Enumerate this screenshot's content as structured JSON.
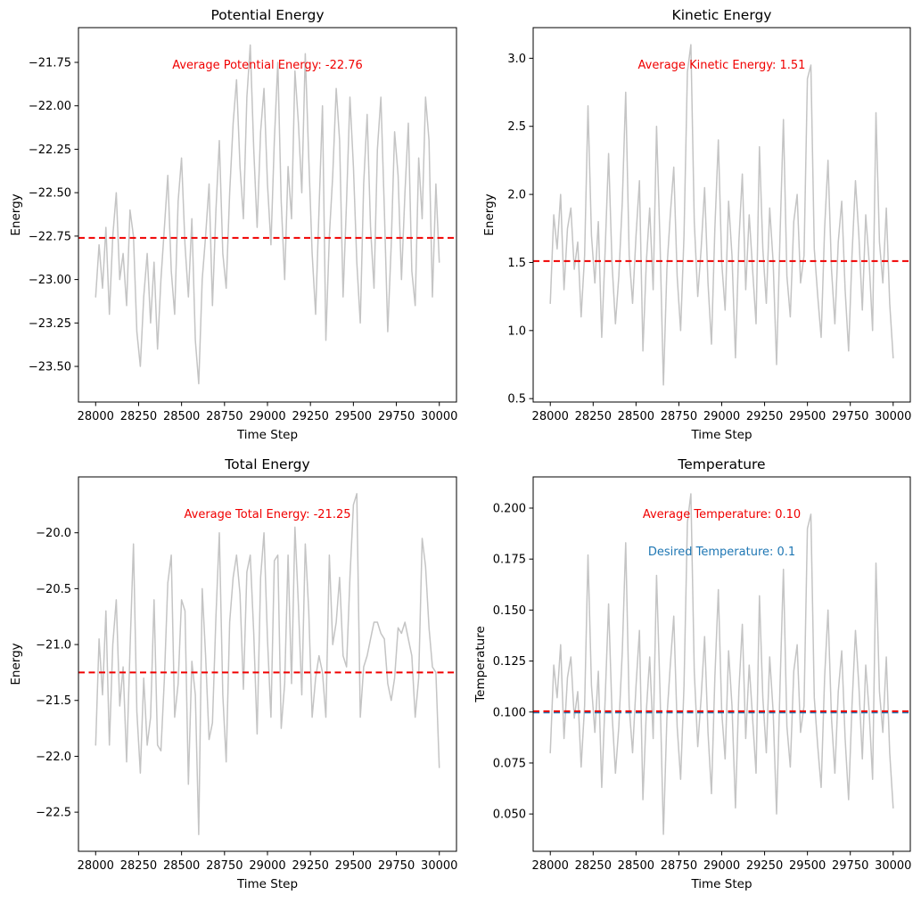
{
  "figure": {
    "background": "#ffffff",
    "colors": {
      "series": "#c4c4c4",
      "average_line": "#f00000",
      "desired_line": "#1f77b4",
      "axis": "#000000",
      "text": "#000000"
    }
  },
  "chart_data": [
    {
      "type": "line",
      "title": "Potential Energy",
      "xlabel": "Time Step",
      "ylabel": "Energy",
      "x_start": 28000,
      "x_step": 20,
      "xlim": [
        27900,
        30100
      ],
      "ylim": [
        -23.705,
        -21.55
      ],
      "xticks": [
        28000,
        28250,
        28500,
        28750,
        29000,
        29250,
        29500,
        29750,
        30000
      ],
      "xtick_labels": [
        "28000",
        "28250",
        "28500",
        "28750",
        "29000",
        "29250",
        "29500",
        "29750",
        "30000"
      ],
      "yticks": [
        -21.75,
        -22.0,
        -22.25,
        -22.5,
        -22.75,
        -23.0,
        -23.25,
        -23.5
      ],
      "ytick_labels": [
        "−21.75",
        "−22.00",
        "−22.25",
        "−22.50",
        "−22.75",
        "−23.00",
        "−23.25",
        "−23.50"
      ],
      "grid": false,
      "series_color": "#c4c4c4",
      "avg_line": {
        "value": -22.76,
        "color": "#f00000",
        "label": "Average Potential Energy: -22.76"
      },
      "values": [
        -23.1,
        -22.8,
        -23.05,
        -22.7,
        -23.2,
        -22.75,
        -22.5,
        -23.0,
        -22.85,
        -23.15,
        -22.6,
        -22.75,
        -23.3,
        -23.5,
        -23.1,
        -22.85,
        -23.25,
        -22.9,
        -23.4,
        -23.0,
        -22.7,
        -22.4,
        -22.95,
        -23.2,
        -22.55,
        -22.3,
        -22.8,
        -23.1,
        -22.65,
        -23.35,
        -23.6,
        -23.0,
        -22.75,
        -22.45,
        -23.15,
        -22.6,
        -22.2,
        -22.85,
        -23.05,
        -22.5,
        -22.1,
        -21.85,
        -22.35,
        -22.65,
        -21.95,
        -21.65,
        -22.25,
        -22.7,
        -22.15,
        -21.9,
        -22.45,
        -22.8,
        -22.2,
        -21.75,
        -22.55,
        -23.0,
        -22.35,
        -22.65,
        -21.8,
        -22.1,
        -22.5,
        -21.7,
        -22.3,
        -22.85,
        -23.2,
        -22.6,
        -22.0,
        -23.35,
        -22.75,
        -22.4,
        -21.9,
        -22.2,
        -23.1,
        -22.55,
        -21.95,
        -22.35,
        -22.9,
        -23.25,
        -22.45,
        -22.05,
        -22.7,
        -23.05,
        -22.25,
        -21.95,
        -22.6,
        -23.3,
        -22.8,
        -22.15,
        -22.4,
        -23.0,
        -22.5,
        -22.1,
        -22.95,
        -23.15,
        -22.3,
        -22.65,
        -21.95,
        -22.2,
        -23.1,
        -22.45,
        -22.9
      ]
    },
    {
      "type": "line",
      "title": "Kinetic Energy",
      "xlabel": "Time Step",
      "ylabel": "Energy",
      "x_start": 28000,
      "x_step": 20,
      "xlim": [
        27900,
        30100
      ],
      "ylim": [
        0.475,
        3.225
      ],
      "xticks": [
        28000,
        28250,
        28500,
        28750,
        29000,
        29250,
        29500,
        29750,
        30000
      ],
      "xtick_labels": [
        "28000",
        "28250",
        "28500",
        "28750",
        "29000",
        "29250",
        "29500",
        "29750",
        "30000"
      ],
      "yticks": [
        0.5,
        1.0,
        1.5,
        2.0,
        2.5,
        3.0
      ],
      "ytick_labels": [
        "0.5",
        "1.0",
        "1.5",
        "2.0",
        "2.5",
        "3.0"
      ],
      "grid": false,
      "series_color": "#c4c4c4",
      "avg_line": {
        "value": 1.51,
        "color": "#f00000",
        "label": "Average Kinetic Energy: 1.51"
      },
      "values": [
        1.2,
        1.85,
        1.6,
        2.0,
        1.3,
        1.75,
        1.9,
        1.45,
        1.65,
        1.1,
        1.55,
        2.65,
        1.7,
        1.35,
        1.8,
        0.95,
        1.6,
        2.3,
        1.5,
        1.05,
        1.4,
        1.95,
        2.75,
        1.55,
        1.2,
        1.7,
        2.1,
        0.85,
        1.5,
        1.9,
        1.3,
        2.5,
        1.65,
        0.6,
        1.45,
        1.85,
        2.2,
        1.4,
        1.0,
        1.7,
        2.9,
        3.1,
        1.8,
        1.25,
        1.6,
        2.05,
        1.35,
        0.9,
        1.75,
        2.4,
        1.5,
        1.15,
        1.95,
        1.55,
        0.8,
        1.65,
        2.15,
        1.3,
        1.85,
        1.45,
        1.05,
        2.35,
        1.6,
        1.2,
        1.9,
        1.5,
        0.75,
        1.7,
        2.55,
        1.4,
        1.1,
        1.8,
        2.0,
        1.35,
        1.55,
        2.85,
        2.95,
        1.6,
        1.25,
        0.95,
        1.75,
        2.25,
        1.45,
        1.05,
        1.65,
        1.95,
        1.3,
        0.85,
        1.55,
        2.1,
        1.7,
        1.15,
        1.85,
        1.5,
        1.0,
        2.6,
        1.65,
        1.35,
        1.9,
        1.2,
        0.8
      ]
    },
    {
      "type": "line",
      "title": "Total Energy",
      "xlabel": "Time Step",
      "ylabel": "Energy",
      "x_start": 28000,
      "x_step": 20,
      "xlim": [
        27900,
        30100
      ],
      "ylim": [
        -22.85,
        -19.5
      ],
      "xticks": [
        28000,
        28250,
        28500,
        28750,
        29000,
        29250,
        29500,
        29750,
        30000
      ],
      "xtick_labels": [
        "28000",
        "28250",
        "28500",
        "28750",
        "29000",
        "29250",
        "29500",
        "29750",
        "30000"
      ],
      "yticks": [
        -20.0,
        -20.5,
        -21.0,
        -21.5,
        -22.0,
        -22.5
      ],
      "ytick_labels": [
        "−20.0",
        "−20.5",
        "−21.0",
        "−21.5",
        "−22.0",
        "−22.5"
      ],
      "grid": false,
      "series_color": "#c4c4c4",
      "avg_line": {
        "value": -21.25,
        "color": "#f00000",
        "label": "Average Total Energy: -21.25"
      },
      "values": [
        -21.9,
        -20.95,
        -21.45,
        -20.7,
        -21.9,
        -21.0,
        -20.6,
        -21.55,
        -21.2,
        -22.05,
        -21.05,
        -20.1,
        -21.6,
        -22.15,
        -21.3,
        -21.9,
        -21.65,
        -20.6,
        -21.9,
        -21.95,
        -21.3,
        -20.45,
        -20.2,
        -21.65,
        -21.35,
        -20.6,
        -20.7,
        -22.25,
        -21.15,
        -21.45,
        -22.7,
        -20.5,
        -21.1,
        -21.85,
        -21.7,
        -20.75,
        -20.0,
        -21.45,
        -22.05,
        -20.8,
        -20.4,
        -20.2,
        -20.55,
        -21.4,
        -20.35,
        -20.2,
        -20.9,
        -21.8,
        -20.4,
        -20.0,
        -20.95,
        -21.65,
        -20.25,
        -20.2,
        -21.75,
        -21.35,
        -20.2,
        -21.35,
        -19.95,
        -20.65,
        -21.45,
        -20.1,
        -20.7,
        -21.65,
        -21.3,
        -21.1,
        -21.25,
        -21.65,
        -20.2,
        -21.0,
        -20.8,
        -20.4,
        -21.1,
        -21.2,
        -20.4,
        -19.75,
        -19.65,
        -21.65,
        -21.2,
        -21.1,
        -20.95,
        -20.8,
        -20.8,
        -20.9,
        -20.95,
        -21.35,
        -21.5,
        -21.3,
        -20.85,
        -20.9,
        -20.8,
        -20.95,
        -21.1,
        -21.65,
        -21.3,
        -20.05,
        -20.3,
        -20.85,
        -21.2,
        -21.25,
        -22.1
      ]
    },
    {
      "type": "line",
      "title": "Temperature",
      "xlabel": "Time Step",
      "ylabel": "Temperature",
      "x_start": 28000,
      "x_step": 20,
      "xlim": [
        27900,
        30100
      ],
      "ylim": [
        0.0317,
        0.2153
      ],
      "xticks": [
        28000,
        28250,
        28500,
        28750,
        29000,
        29250,
        29500,
        29750,
        30000
      ],
      "xtick_labels": [
        "28000",
        "28250",
        "28500",
        "28750",
        "29000",
        "29250",
        "29500",
        "29750",
        "30000"
      ],
      "yticks": [
        0.05,
        0.075,
        0.1,
        0.125,
        0.15,
        0.175,
        0.2
      ],
      "ytick_labels": [
        "0.050",
        "0.075",
        "0.100",
        "0.125",
        "0.150",
        "0.175",
        "0.200"
      ],
      "grid": false,
      "series_color": "#c4c4c4",
      "avg_line": {
        "value": 0.1004,
        "color": "#f00000",
        "label": "Average Temperature: 0.10"
      },
      "desired_line": {
        "value": 0.0998,
        "color": "#1f77b4",
        "label": "Desired Temperature: 0.1"
      },
      "values": [
        0.08,
        0.123,
        0.107,
        0.133,
        0.087,
        0.117,
        0.127,
        0.097,
        0.11,
        0.073,
        0.103,
        0.177,
        0.113,
        0.09,
        0.12,
        0.063,
        0.107,
        0.153,
        0.1,
        0.07,
        0.093,
        0.13,
        0.183,
        0.103,
        0.08,
        0.113,
        0.14,
        0.057,
        0.1,
        0.127,
        0.087,
        0.167,
        0.11,
        0.04,
        0.097,
        0.123,
        0.147,
        0.093,
        0.067,
        0.113,
        0.193,
        0.207,
        0.12,
        0.083,
        0.107,
        0.137,
        0.09,
        0.06,
        0.117,
        0.16,
        0.1,
        0.077,
        0.13,
        0.103,
        0.053,
        0.11,
        0.143,
        0.087,
        0.123,
        0.097,
        0.07,
        0.157,
        0.107,
        0.08,
        0.127,
        0.1,
        0.05,
        0.113,
        0.17,
        0.093,
        0.073,
        0.12,
        0.133,
        0.09,
        0.103,
        0.19,
        0.197,
        0.107,
        0.083,
        0.063,
        0.117,
        0.15,
        0.097,
        0.07,
        0.11,
        0.13,
        0.087,
        0.057,
        0.103,
        0.14,
        0.113,
        0.077,
        0.123,
        0.1,
        0.067,
        0.173,
        0.11,
        0.09,
        0.127,
        0.08,
        0.053
      ]
    }
  ]
}
